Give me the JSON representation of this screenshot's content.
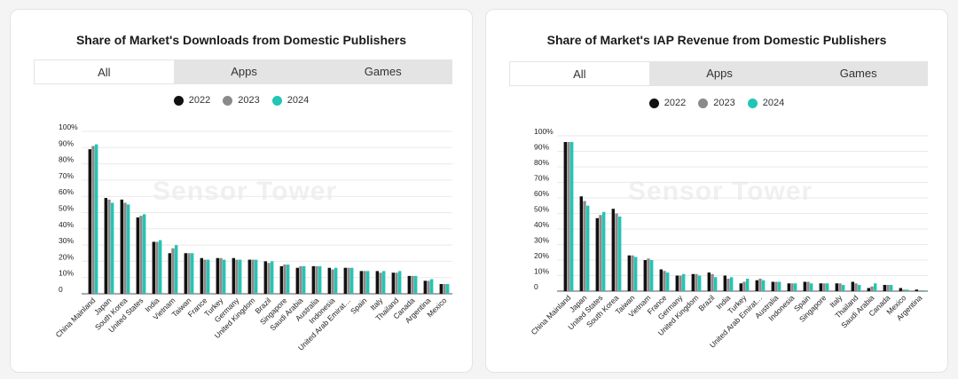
{
  "colors": {
    "2022": "#111111",
    "2023": "#8a8a8a",
    "2024": "#22c6b4"
  },
  "watermark": "Sensor Tower",
  "chart_data": [
    {
      "type": "bar",
      "title": "Share of Market's Downloads from Domestic Publishers",
      "tabs": [
        "All",
        "Apps",
        "Games"
      ],
      "active_tab": "All",
      "legend": [
        "2022",
        "2023",
        "2024"
      ],
      "yticks": [
        "0",
        "10%",
        "20%",
        "30%",
        "40%",
        "50%",
        "60%",
        "70%",
        "80%",
        "90%",
        "100%"
      ],
      "ylim": [
        0,
        100
      ],
      "categories": [
        "China Mainland",
        "Japan",
        "South Korea",
        "United States",
        "India",
        "Vietnam",
        "Taiwan",
        "France",
        "Turkey",
        "Germany",
        "United Kingdom",
        "Brazil",
        "Singapore",
        "Saudi Arabia",
        "Australia",
        "Indonesia",
        "United Arab Emirat…",
        "Spain",
        "Italy",
        "Thailand",
        "Canada",
        "Argentina",
        "Mexico"
      ],
      "series": [
        {
          "name": "2022",
          "values": [
            89,
            59,
            58,
            47,
            32,
            25,
            25,
            22,
            22,
            22,
            21,
            20,
            17,
            16,
            17,
            16,
            16,
            14,
            14,
            13,
            11,
            8,
            6
          ]
        },
        {
          "name": "2023",
          "values": [
            91,
            58,
            56,
            48,
            32,
            28,
            25,
            21,
            22,
            21,
            21,
            19,
            18,
            17,
            17,
            15,
            16,
            14,
            13,
            13,
            11,
            8,
            6
          ]
        },
        {
          "name": "2024",
          "values": [
            92,
            56,
            55,
            49,
            33,
            30,
            25,
            21,
            21,
            21,
            21,
            20,
            18,
            17,
            17,
            16,
            16,
            14,
            14,
            14,
            11,
            9,
            6
          ]
        }
      ]
    },
    {
      "type": "bar",
      "title": "Share of Market's IAP Revenue from Domestic Publishers",
      "tabs": [
        "All",
        "Apps",
        "Games"
      ],
      "active_tab": "All",
      "legend": [
        "2022",
        "2023",
        "2024"
      ],
      "yticks": [
        "0",
        "10%",
        "20%",
        "30%",
        "40%",
        "50%",
        "60%",
        "70%",
        "80%",
        "90%",
        "100%"
      ],
      "ylim": [
        0,
        100
      ],
      "categories": [
        "China Mainland",
        "Japan",
        "United States",
        "South Korea",
        "Taiwan",
        "Vietnam",
        "France",
        "Germany",
        "United Kingdom",
        "Brazil",
        "India",
        "Turkey",
        "United Arab Emirat…",
        "Australia",
        "Indonesia",
        "Spain",
        "Singapore",
        "Italy",
        "Thailand",
        "Saudi Arabia",
        "Canada",
        "Mexico",
        "Argentina"
      ],
      "series": [
        {
          "name": "2022",
          "values": [
            96,
            61,
            47,
            53,
            23,
            20,
            14,
            10,
            11,
            12,
            10,
            5,
            7,
            6,
            5,
            6,
            5,
            5,
            6,
            2,
            4,
            2,
            1
          ]
        },
        {
          "name": "2023",
          "values": [
            96,
            58,
            49,
            50,
            23,
            21,
            13,
            10,
            11,
            11,
            8,
            6,
            8,
            6,
            5,
            6,
            5,
            5,
            5,
            3,
            4,
            1,
            0.5
          ]
        },
        {
          "name": "2024",
          "values": [
            96,
            55,
            51,
            48,
            22,
            20,
            12,
            11,
            10,
            9,
            9,
            8,
            7,
            6,
            5,
            5,
            5,
            4,
            4,
            5,
            4,
            1,
            0.5
          ]
        }
      ]
    }
  ]
}
